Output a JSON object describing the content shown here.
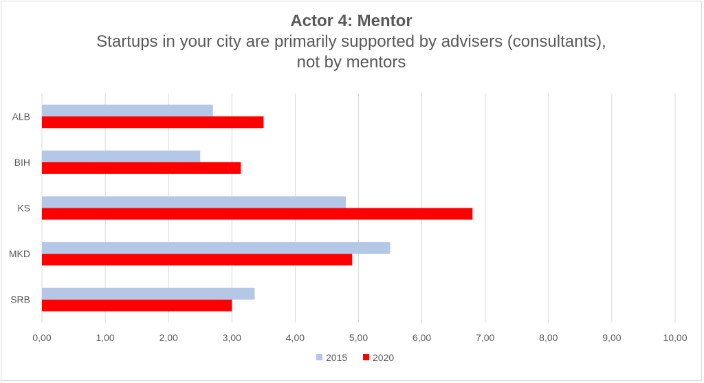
{
  "chart_data": {
    "type": "bar",
    "orientation": "horizontal",
    "title": "Actor 4: Mentor",
    "subtitle_lines": [
      "Startups in your city are primarily supported by advisers (consultants),",
      "not by mentors"
    ],
    "categories": [
      "ALB",
      "BIH",
      "KS",
      "MKD",
      "SRB"
    ],
    "series": [
      {
        "name": "2015",
        "color": "#b4c7e7",
        "values": [
          2.7,
          2.5,
          4.8,
          5.5,
          3.36
        ]
      },
      {
        "name": "2020",
        "color": "#ff0000",
        "values": [
          3.5,
          3.14,
          6.8,
          4.9,
          3.0
        ]
      }
    ],
    "xlim": [
      0,
      10
    ],
    "x_ticks": [
      "0,00",
      "1,00",
      "2,00",
      "3,00",
      "4,00",
      "5,00",
      "6,00",
      "7,00",
      "8,00",
      "9,00",
      "10,00"
    ],
    "grid": "vertical",
    "legend_position": "bottom",
    "gridline_color": "#d9d9d9"
  }
}
